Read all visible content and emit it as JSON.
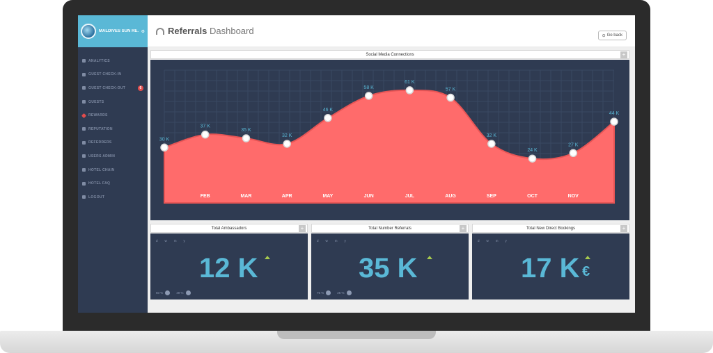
{
  "sidebar": {
    "hotel_name": "MALDIVES SUN RE...",
    "items": [
      {
        "label": "ANALYTICS",
        "icon": "bar-chart-icon"
      },
      {
        "label": "GUEST CHECK-IN",
        "icon": "sign-in-icon"
      },
      {
        "label": "GUEST CHECK-OUT",
        "icon": "sign-out-icon",
        "badge": "6"
      },
      {
        "label": "GUESTS",
        "icon": "users-icon"
      },
      {
        "label": "REWARDS",
        "icon": "diamond-icon"
      },
      {
        "label": "REPUTATION",
        "icon": "chart-icon"
      },
      {
        "label": "REFERRERS",
        "icon": "area-chart-icon"
      },
      {
        "label": "USERS ADMIN",
        "icon": "user-icon"
      },
      {
        "label": "HOTEL CHAIN",
        "icon": "building-icon"
      },
      {
        "label": "HOTEL FAQ",
        "icon": "question-icon"
      },
      {
        "label": "LOGOUT",
        "icon": "power-icon"
      }
    ]
  },
  "header": {
    "title_bold": "Referrals",
    "title_rest": "Dashboard",
    "go_back": "Go back"
  },
  "chart_data": {
    "type": "area",
    "title": "Social Media Connections",
    "categories": [
      "",
      "FEB",
      "MAR",
      "APR",
      "MAY",
      "JUN",
      "JUL",
      "AUG",
      "SEP",
      "OCT",
      "NOV",
      ""
    ],
    "values": [
      30,
      37,
      35,
      32,
      46,
      58,
      61,
      57,
      32,
      24,
      27,
      44
    ],
    "labels": [
      "30 K",
      "37 K",
      "35 K",
      "32 K",
      "46 K",
      "58 K",
      "61 K",
      "57 K",
      "32 K",
      "24 K",
      "27 K",
      "44 K"
    ],
    "ylim": [
      0,
      70
    ],
    "grid": true,
    "fill_color": "#ff6b6b",
    "background": "#2f3b52"
  },
  "cards": [
    {
      "title": "Total Ambassadors",
      "value": "12 K",
      "currency": "",
      "periods": [
        "d",
        "w",
        "m",
        "y"
      ],
      "shares": [
        "50 %",
        "49 %"
      ]
    },
    {
      "title": "Total Number Referrals",
      "value": "35 K",
      "currency": "",
      "periods": [
        "d",
        "w",
        "m",
        "y"
      ],
      "shares": [
        "75 %",
        "25 %"
      ]
    },
    {
      "title": "Total New Direct Bookings",
      "value": "17 K",
      "currency": "€",
      "periods": [
        "d",
        "w",
        "m",
        "y"
      ],
      "shares": []
    }
  ],
  "colors": {
    "accent": "#5ab8d6",
    "panel": "#2f3b52",
    "area": "#ff6b6b",
    "trend_up": "#a6c94e"
  }
}
